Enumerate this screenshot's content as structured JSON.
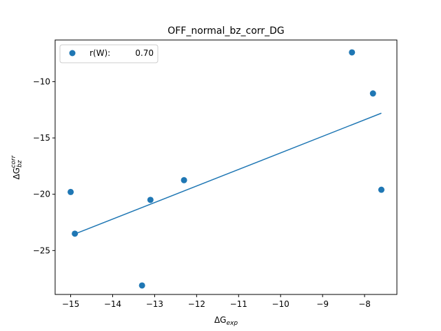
{
  "chart_data": {
    "type": "scatter",
    "title": "OFF_normal_bz_corr_DG",
    "xlabel": {
      "base": "ΔG",
      "sub": "exp"
    },
    "ylabel": {
      "base": "ΔG",
      "sub": "bz",
      "sup": "corr"
    },
    "xlim": [
      -15.37,
      -7.23
    ],
    "ylim": [
      -28.9,
      -6.3
    ],
    "x_ticks": [
      -15,
      -14,
      -13,
      -12,
      -11,
      -10,
      -9,
      -8
    ],
    "y_ticks": [
      -25,
      -20,
      -15,
      -10
    ],
    "x_tick_labels": [
      "−15",
      "−14",
      "−13",
      "−12",
      "−11",
      "−10",
      "−9",
      "−8"
    ],
    "y_tick_labels": [
      "−25",
      "−20",
      "−15",
      "−10"
    ],
    "grid": false,
    "legend": {
      "placement": "top-left",
      "label": "r(W):",
      "value": "0.70"
    },
    "series": [
      {
        "name": "r(W):      0.70",
        "color": "#1f77b4",
        "points": [
          {
            "x": -15.0,
            "y": -19.8
          },
          {
            "x": -14.9,
            "y": -23.5
          },
          {
            "x": -13.3,
            "y": -28.1
          },
          {
            "x": -13.1,
            "y": -20.5
          },
          {
            "x": -12.3,
            "y": -18.75
          },
          {
            "x": -8.3,
            "y": -7.4
          },
          {
            "x": -7.8,
            "y": -11.05
          },
          {
            "x": -7.6,
            "y": -19.6
          }
        ]
      }
    ],
    "fit_line": {
      "color": "#1f77b4",
      "x": [
        -14.95,
        -7.6
      ],
      "y": [
        -23.6,
        -12.8
      ]
    }
  }
}
